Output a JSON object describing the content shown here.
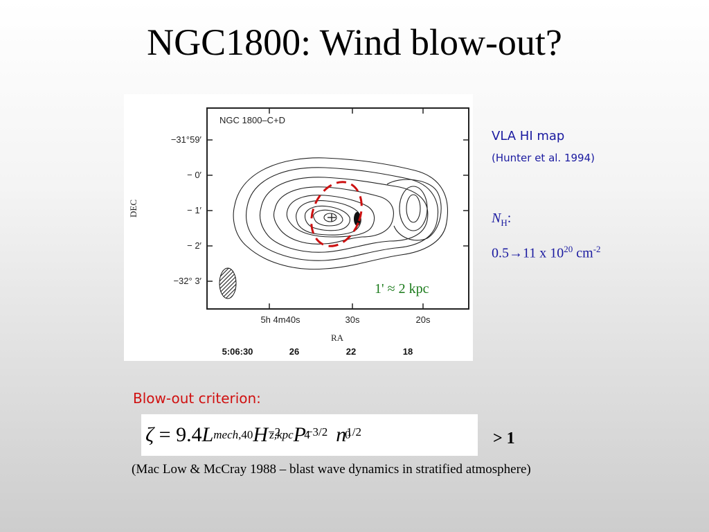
{
  "slide": {
    "title": "NGC1800: Wind blow-out?"
  },
  "figure": {
    "panel_label": "NGC 1800–C+D",
    "dec_axis_label": "DEC",
    "ra_axis_label": "RA",
    "dec_ticks": [
      "−31°59′",
      "− 0′",
      "− 1′",
      "− 2′",
      "−32° 3′"
    ],
    "ra_ticks": [
      "5h 4m40s",
      "30s",
      "20s"
    ],
    "overlay_ticks": [
      "5:06:30",
      "26",
      "22",
      "18"
    ],
    "scale_bar": "1' ≈ 2 kpc",
    "colors": {
      "contour": "#222222",
      "highlight": "#cc1111",
      "scale_text": "#1a7a1a"
    }
  },
  "side": {
    "map_title": "VLA HI map",
    "map_credit": "(Hunter et al. 1994)",
    "nh_symbol": "N",
    "nh_sub": "H",
    "nh_colon": ":",
    "nh_range_prefix": "0.5",
    "nh_arrow": "→",
    "nh_range_mid": "11 x 10",
    "nh_exp": "20",
    "nh_unit": " cm",
    "nh_unit_exp": "-2"
  },
  "criterion": {
    "title": "Blow-out criterion:",
    "greater_than": "> 1",
    "reference": "(Mac Low & McCray 1988 – blast wave dynamics in stratified atmosphere)"
  },
  "colors": {
    "title": "#000000",
    "side_text": "#1a1aa0",
    "criterion_title": "#d01010"
  }
}
